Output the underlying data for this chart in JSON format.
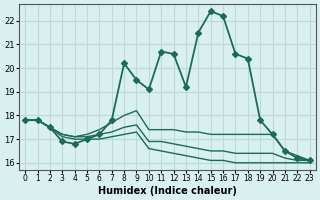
{
  "title": "",
  "xlabel": "Humidex (Indice chaleur)",
  "ylabel": "",
  "bg_color": "#d8f0ef",
  "grid_color": "#c0d8d8",
  "line_color": "#1a6b5a",
  "xlim": [
    -0.5,
    23.5
  ],
  "ylim": [
    15.7,
    22.7
  ],
  "yticks": [
    16,
    17,
    18,
    19,
    20,
    21,
    22
  ],
  "xticks": [
    0,
    1,
    2,
    3,
    4,
    5,
    6,
    7,
    8,
    9,
    10,
    11,
    12,
    13,
    14,
    15,
    16,
    17,
    18,
    19,
    20,
    21,
    22,
    23
  ],
  "series": [
    {
      "x": [
        0,
        1,
        2,
        3,
        4,
        5,
        6,
        7,
        8,
        9,
        10,
        11,
        12,
        13,
        14,
        15,
        16,
        17,
        18,
        19,
        20,
        21,
        22,
        23
      ],
      "y": [
        17.8,
        17.8,
        17.5,
        16.9,
        16.8,
        17.0,
        17.2,
        17.8,
        20.2,
        19.5,
        19.1,
        20.7,
        20.6,
        19.2,
        21.5,
        22.4,
        22.2,
        20.6,
        20.4,
        17.8,
        17.2,
        16.5,
        16.2,
        16.1
      ],
      "marker": "D",
      "markersize": 3,
      "linewidth": 1.3
    },
    {
      "x": [
        0,
        1,
        2,
        3,
        4,
        5,
        6,
        7,
        8,
        9,
        10,
        11,
        12,
        13,
        14,
        15,
        16,
        17,
        18,
        19,
        20,
        21,
        22,
        23
      ],
      "y": [
        17.8,
        17.8,
        17.5,
        17.2,
        17.1,
        17.2,
        17.4,
        17.7,
        18.0,
        18.2,
        17.4,
        17.4,
        17.4,
        17.3,
        17.3,
        17.2,
        17.2,
        17.2,
        17.2,
        17.2,
        17.2,
        16.5,
        16.3,
        16.1
      ],
      "marker": null,
      "markersize": 0,
      "linewidth": 1.0
    },
    {
      "x": [
        0,
        1,
        2,
        3,
        4,
        5,
        6,
        7,
        8,
        9,
        10,
        11,
        12,
        13,
        14,
        15,
        16,
        17,
        18,
        19,
        20,
        21,
        22,
        23
      ],
      "y": [
        17.8,
        17.8,
        17.5,
        17.2,
        17.1,
        17.1,
        17.2,
        17.3,
        17.5,
        17.6,
        16.9,
        16.9,
        16.8,
        16.7,
        16.6,
        16.5,
        16.5,
        16.4,
        16.4,
        16.4,
        16.4,
        16.2,
        16.1,
        16.1
      ],
      "marker": null,
      "markersize": 0,
      "linewidth": 1.0
    },
    {
      "x": [
        0,
        1,
        2,
        3,
        4,
        5,
        6,
        7,
        8,
        9,
        10,
        11,
        12,
        13,
        14,
        15,
        16,
        17,
        18,
        19,
        20,
        21,
        22,
        23
      ],
      "y": [
        17.8,
        17.8,
        17.5,
        17.1,
        17.0,
        17.0,
        17.0,
        17.1,
        17.2,
        17.3,
        16.6,
        16.5,
        16.4,
        16.3,
        16.2,
        16.1,
        16.1,
        16.0,
        16.0,
        16.0,
        16.0,
        16.0,
        16.0,
        16.0
      ],
      "marker": null,
      "markersize": 0,
      "linewidth": 1.0
    }
  ]
}
